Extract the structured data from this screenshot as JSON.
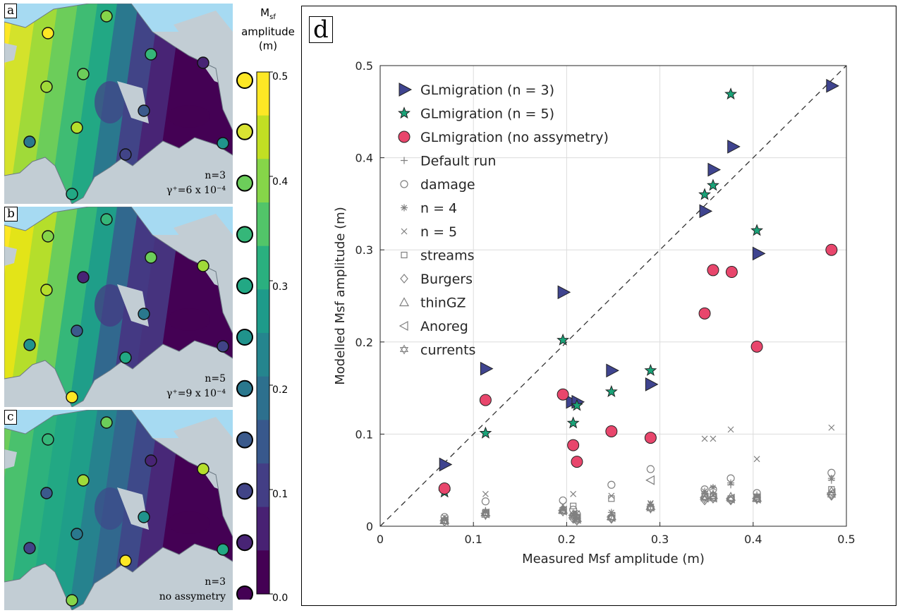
{
  "panels": [
    {
      "letter": "a",
      "line1": "n=3",
      "line2": "γ⁺=6 x 10⁻⁴"
    },
    {
      "letter": "b",
      "line1": "n=5",
      "line2": "γ⁺=9 x 10⁻⁴"
    },
    {
      "letter": "c",
      "line1": "n=3",
      "line2": "no assymetry"
    }
  ],
  "colorbar": {
    "title_main": "M",
    "title_sub": "sf",
    "title_line2": "amplitude",
    "title_line3": "(m)",
    "ticks": [
      "0.5",
      "0.4",
      "0.3",
      "0.2",
      "0.1",
      "0.0"
    ],
    "colors": [
      "#fde725",
      "#c2df23",
      "#86d549",
      "#52c569",
      "#2ab07f",
      "#1e9b8a",
      "#25858e",
      "#2d708e",
      "#38588c",
      "#433e85",
      "#482173",
      "#440154"
    ],
    "measured_circle_colors": [
      "#fde725",
      "#d9e332",
      "#6ccd5a",
      "#35b779",
      "#22a884",
      "#20938c",
      "#2a788e",
      "#3b5a8c",
      "#414487",
      "#482475",
      "#440154"
    ]
  },
  "chart_data": {
    "type": "scatter",
    "panel_letter": "d",
    "xlabel": "Measured Msf amplitude (m)",
    "ylabel": "Modelled Msf amplitude (m)",
    "xlim": [
      0,
      0.5
    ],
    "ylim": [
      0,
      0.5
    ],
    "xticks": [
      "0",
      "0.1",
      "0.2",
      "0.3",
      "0.4",
      "0.5"
    ],
    "yticks": [
      "0",
      "0.1",
      "0.2",
      "0.3",
      "0.4",
      "0.5"
    ],
    "grid": true,
    "reference_line": "y = x (dashed)",
    "legend_position": "top-left",
    "series": [
      {
        "name": "GLmigration (n = 3)",
        "marker": "triangle-right",
        "color": "#3f448f",
        "x": [
          0.069,
          0.113,
          0.196,
          0.205,
          0.211,
          0.248,
          0.29,
          0.348,
          0.357,
          0.378,
          0.405,
          0.484
        ],
        "y": [
          0.067,
          0.171,
          0.254,
          0.135,
          0.135,
          0.169,
          0.154,
          0.342,
          0.387,
          0.412,
          0.296,
          0.478
        ]
      },
      {
        "name": "GLmigration (n = 5)",
        "marker": "star",
        "color": "#1aa378",
        "x": [
          0.069,
          0.113,
          0.196,
          0.207,
          0.211,
          0.248,
          0.29,
          0.348,
          0.357,
          0.376,
          0.404
        ],
        "y": [
          0.037,
          0.101,
          0.202,
          0.112,
          0.131,
          0.146,
          0.169,
          0.36,
          0.37,
          0.469,
          0.321
        ]
      },
      {
        "name": "GLmigration (no assymetry)",
        "marker": "circle-filled",
        "color": "#e8466c",
        "x": [
          0.069,
          0.113,
          0.196,
          0.207,
          0.211,
          0.248,
          0.29,
          0.348,
          0.357,
          0.377,
          0.404,
          0.484
        ],
        "y": [
          0.041,
          0.137,
          0.143,
          0.088,
          0.07,
          0.103,
          0.096,
          0.231,
          0.278,
          0.276,
          0.195,
          0.3
        ]
      },
      {
        "name": "Default run",
        "marker": "plus",
        "color": "#808080",
        "x": [
          0.069,
          0.113,
          0.196,
          0.207,
          0.211,
          0.248,
          0.29,
          0.348,
          0.357,
          0.376,
          0.404,
          0.484
        ],
        "y": [
          0.008,
          0.017,
          0.02,
          0.014,
          0.009,
          0.012,
          0.022,
          0.036,
          0.035,
          0.045,
          0.034,
          0.05
        ]
      },
      {
        "name": "damage",
        "marker": "circle-open",
        "color": "#808080",
        "x": [
          0.069,
          0.113,
          0.196,
          0.207,
          0.211,
          0.248,
          0.29,
          0.348,
          0.357,
          0.376,
          0.404,
          0.484
        ],
        "y": [
          0.01,
          0.027,
          0.028,
          0.018,
          0.013,
          0.045,
          0.062,
          0.04,
          0.04,
          0.052,
          0.036,
          0.058
        ]
      },
      {
        "name": "n = 4",
        "marker": "asterisk",
        "color": "#808080",
        "x": [
          0.069,
          0.113,
          0.196,
          0.207,
          0.211,
          0.248,
          0.29,
          0.348,
          0.357,
          0.376,
          0.404,
          0.484
        ],
        "y": [
          0.007,
          0.016,
          0.018,
          0.012,
          0.008,
          0.015,
          0.024,
          0.038,
          0.042,
          0.047,
          0.032,
          0.052
        ]
      },
      {
        "name": "n = 5",
        "marker": "cross",
        "color": "#808080",
        "x": [
          0.069,
          0.113,
          0.196,
          0.207,
          0.211,
          0.248,
          0.29,
          0.348,
          0.357,
          0.376,
          0.404,
          0.484
        ],
        "y": [
          0.01,
          0.035,
          0.023,
          0.035,
          0.014,
          0.033,
          0.025,
          0.095,
          0.095,
          0.105,
          0.073,
          0.107
        ]
      },
      {
        "name": "streams",
        "marker": "square",
        "color": "#808080",
        "x": [
          0.069,
          0.113,
          0.196,
          0.207,
          0.211,
          0.248,
          0.29,
          0.348,
          0.357,
          0.376,
          0.404,
          0.484
        ],
        "y": [
          0.006,
          0.015,
          0.017,
          0.022,
          0.01,
          0.03,
          0.02,
          0.032,
          0.033,
          0.03,
          0.032,
          0.04
        ]
      },
      {
        "name": "Burgers",
        "marker": "diamond",
        "color": "#808080",
        "x": [
          0.069,
          0.113,
          0.196,
          0.207,
          0.211,
          0.248,
          0.29,
          0.348,
          0.357,
          0.376,
          0.404,
          0.484
        ],
        "y": [
          0.005,
          0.013,
          0.016,
          0.008,
          0.006,
          0.008,
          0.02,
          0.028,
          0.03,
          0.028,
          0.03,
          0.033
        ]
      },
      {
        "name": "thinGZ",
        "marker": "triangle-up",
        "color": "#808080",
        "x": [
          0.069,
          0.113,
          0.196,
          0.207,
          0.211,
          0.248,
          0.29,
          0.348,
          0.357,
          0.376,
          0.404,
          0.484
        ],
        "y": [
          0.007,
          0.015,
          0.018,
          0.013,
          0.009,
          0.011,
          0.022,
          0.033,
          0.034,
          0.032,
          0.031,
          0.038
        ]
      },
      {
        "name": "Anoreg",
        "marker": "triangle-left",
        "color": "#808080",
        "x": [
          0.069,
          0.113,
          0.196,
          0.207,
          0.211,
          0.248,
          0.29,
          0.348,
          0.357,
          0.376,
          0.404,
          0.484
        ],
        "y": [
          0.006,
          0.014,
          0.017,
          0.012,
          0.008,
          0.01,
          0.05,
          0.031,
          0.031,
          0.03,
          0.03,
          0.036
        ]
      },
      {
        "name": "currents",
        "marker": "hexagram",
        "color": "#808080",
        "x": [
          0.069,
          0.113,
          0.196,
          0.207,
          0.211,
          0.248,
          0.29,
          0.348,
          0.357,
          0.376,
          0.404,
          0.484
        ],
        "y": [
          0.005,
          0.012,
          0.016,
          0.01,
          0.006,
          0.009,
          0.019,
          0.03,
          0.03,
          0.029,
          0.029,
          0.034
        ]
      }
    ]
  }
}
